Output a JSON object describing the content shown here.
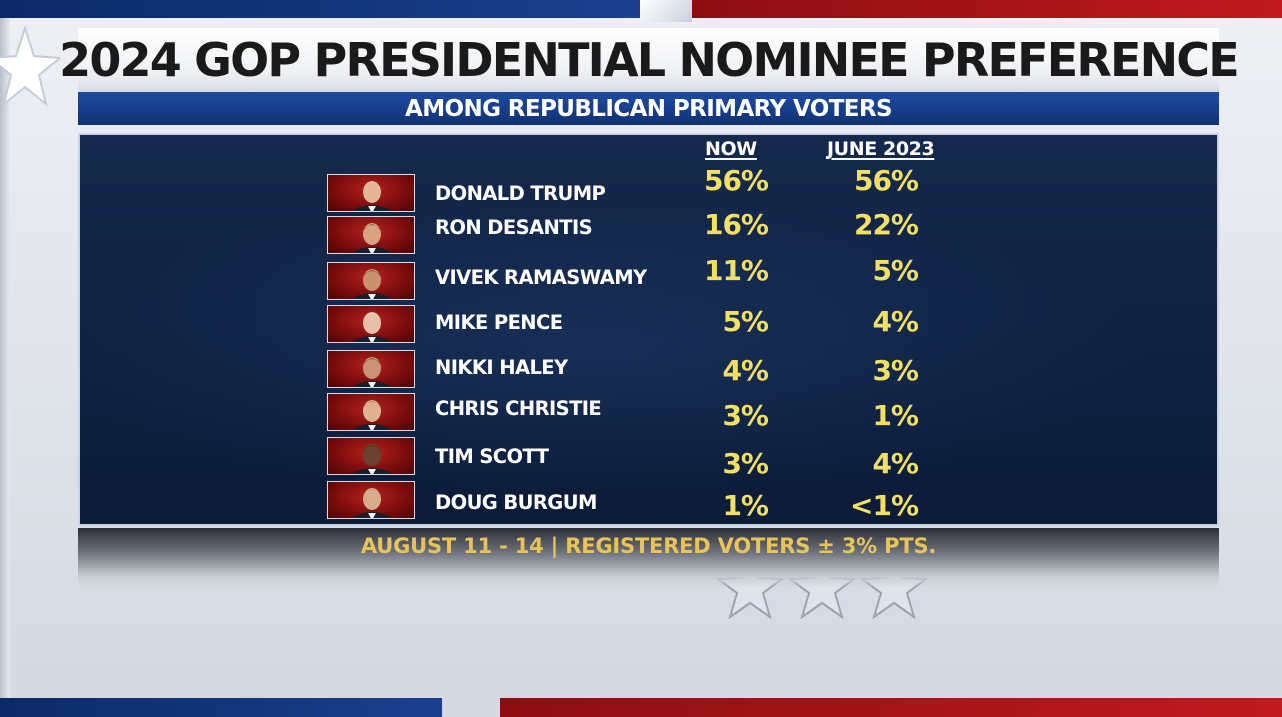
{
  "title": "2024 GOP PRESIDENTIAL NOMINEE PREFERENCE",
  "subtitle": "AMONG REPUBLICAN PRIMARY VOTERS",
  "footer": "AUGUST 11 - 14 | REGISTERED VOTERS ± 3% PTS.",
  "colors": {
    "value_text": "#f2df63",
    "footer_text": "#e7c35a",
    "panel_bg": "#102345",
    "subtitle_bg": "#173d88"
  },
  "chart_data": {
    "type": "table",
    "title": "2024 GOP PRESIDENTIAL NOMINEE PREFERENCE",
    "subtitle": "AMONG REPUBLICAN PRIMARY VOTERS",
    "columns": [
      "NOW",
      "JUNE 2023"
    ],
    "rows": [
      {
        "candidate": "DONALD TRUMP",
        "now": "56%",
        "june_2023": "56%"
      },
      {
        "candidate": "RON DESANTIS",
        "now": "16%",
        "june_2023": "22%"
      },
      {
        "candidate": "VIVEK RAMASWAMY",
        "now": "11%",
        "june_2023": "5%"
      },
      {
        "candidate": "MIKE PENCE",
        "now": "5%",
        "june_2023": "4%"
      },
      {
        "candidate": "NIKKI HALEY",
        "now": "4%",
        "june_2023": "3%"
      },
      {
        "candidate": "CHRIS CHRISTIE",
        "now": "3%",
        "june_2023": "1%"
      },
      {
        "candidate": "TIM SCOTT",
        "now": "3%",
        "june_2023": "4%"
      },
      {
        "candidate": "DOUG BURGUM",
        "now": "1%",
        "june_2023": "<1%"
      }
    ],
    "source_note": "AUGUST 11 - 14 | REGISTERED VOTERS ± 3% PTS."
  }
}
